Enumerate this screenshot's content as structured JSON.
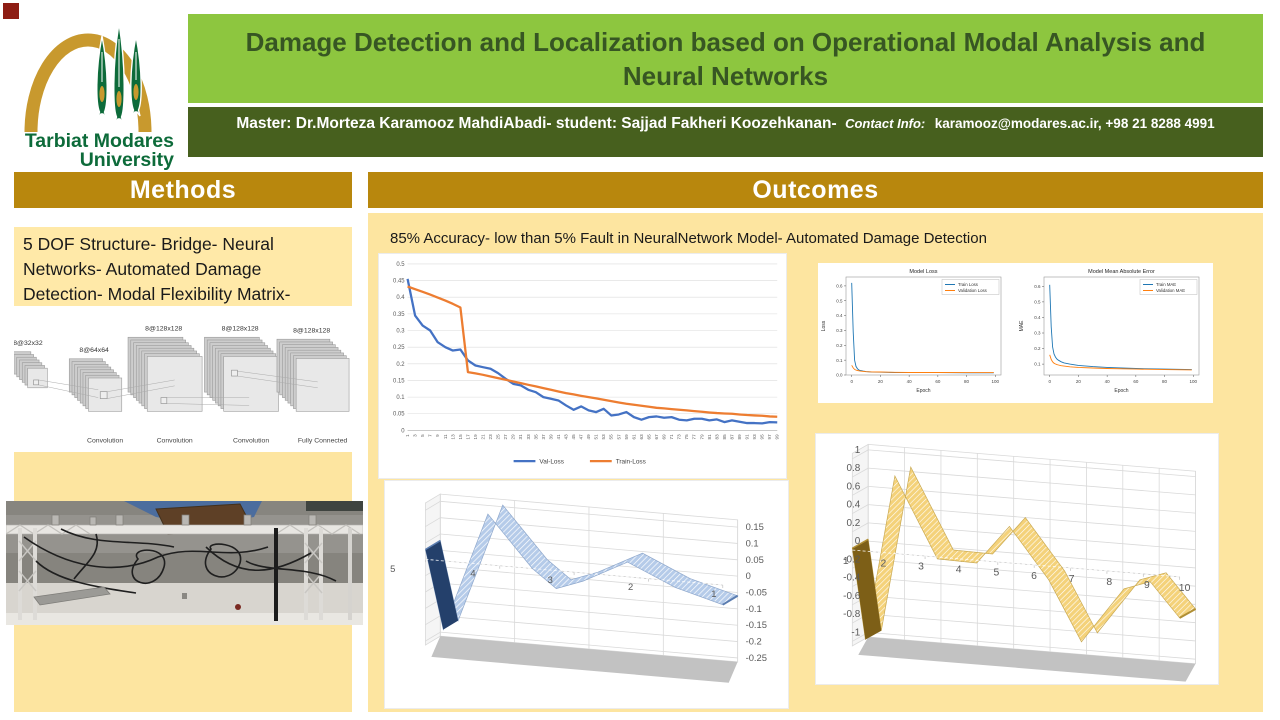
{
  "university": {
    "name_line1": "Tarbiat Modares",
    "name_line2": "University"
  },
  "header": {
    "title": "Damage Detection and Localization based on Operational Modal Analysis and Neural Networks",
    "authors": "Master: Dr.Morteza Karamooz MahdiAbadi- student: Sajjad Fakheri Koozehkanan-",
    "contact_label": "Contact Info:",
    "contact_value": "karamooz@modares.ac.ir, +98 21 8288 4991"
  },
  "sections": {
    "methods": {
      "title": "Methods",
      "summary": "5 DOF Structure- Bridge- Neural Networks- Automated Damage Detection- Modal Flexibility Matrix- Mahalanobis Distance"
    },
    "outcomes": {
      "title": "Outcomes",
      "summary": "85% Accuracy- low than 5% Fault in NeuralNetwork Model- Automated Damage Detection"
    }
  },
  "cnn_diagram": {
    "top_labels": [
      "8@32x32",
      "8@64x64",
      "8@128x128",
      "8@128x128",
      "8@128x128"
    ],
    "bottom_labels": [
      "Convolution",
      "Convolution",
      "Convolution",
      "Fully Connected"
    ]
  },
  "colors": {
    "title_bg": "#8dc63f",
    "title_text": "#375623",
    "authors_bg": "#47601e",
    "section_header_bg": "#b8870d",
    "panel_yellow": "#fde5a0",
    "summary_yellow": "#ffe9a8",
    "excel_blue": "#4472C4",
    "excel_orange": "#ED7D31",
    "mpl_blue": "#1f77b4",
    "mpl_orange": "#ff7f0e",
    "ribbon_blue": "#b5cbe9",
    "ribbon_yellow": "#f4d27a",
    "logo_green": "#0d6b3a",
    "logo_gold": "#c8992e"
  },
  "chart_data": [
    {
      "type": "line",
      "name": "training-history",
      "title": "",
      "x_ticks": [
        1,
        3,
        5,
        7,
        9,
        11,
        13,
        15,
        17,
        19,
        21,
        23,
        25,
        27,
        29,
        31,
        33,
        35,
        37,
        39,
        41,
        43,
        45,
        47,
        49,
        51,
        53,
        55,
        57,
        59,
        61,
        63,
        65,
        67,
        69,
        71,
        73,
        75,
        77,
        79,
        81,
        83,
        85,
        87,
        89,
        91,
        93,
        95,
        97,
        99
      ],
      "y_ticks": [
        0,
        0.05,
        0.1,
        0.15,
        0.2,
        0.25,
        0.3,
        0.35,
        0.4,
        0.45,
        0.5
      ],
      "ylim": [
        0,
        0.5
      ],
      "grid": true,
      "legend_position": "bottom",
      "series": [
        {
          "name": "Val-Loss",
          "color": "#4472C4",
          "values": [
            0.455,
            0.345,
            0.315,
            0.3,
            0.265,
            0.25,
            0.24,
            0.243,
            0.21,
            0.195,
            0.19,
            0.185,
            0.172,
            0.155,
            0.14,
            0.135,
            0.122,
            0.115,
            0.1,
            0.095,
            0.09,
            0.075,
            0.062,
            0.072,
            0.06,
            0.055,
            0.065,
            0.045,
            0.048,
            0.055,
            0.04,
            0.032,
            0.04,
            0.042,
            0.038,
            0.04,
            0.032,
            0.03,
            0.035,
            0.035,
            0.03,
            0.033,
            0.025,
            0.03,
            0.026,
            0.022,
            0.022,
            0.021,
            0.025,
            0.024
          ]
        },
        {
          "name": "Train-Loss",
          "color": "#ED7D31",
          "values": [
            0.432,
            0.424,
            0.416,
            0.408,
            0.399,
            0.39,
            0.38,
            0.369,
            0.175,
            0.171,
            0.167,
            0.162,
            0.157,
            0.152,
            0.147,
            0.142,
            0.137,
            0.132,
            0.127,
            0.122,
            0.117,
            0.112,
            0.108,
            0.104,
            0.1,
            0.096,
            0.092,
            0.088,
            0.084,
            0.08,
            0.077,
            0.074,
            0.071,
            0.068,
            0.066,
            0.064,
            0.062,
            0.06,
            0.058,
            0.056,
            0.054,
            0.052,
            0.051,
            0.05,
            0.048,
            0.046,
            0.045,
            0.044,
            0.042,
            0.041
          ]
        }
      ]
    },
    {
      "type": "line",
      "name": "model-loss",
      "title": "Model Loss",
      "xlabel": "Epoch",
      "ylabel": "Loss",
      "x_ticks": [
        0,
        20,
        40,
        60,
        80,
        100
      ],
      "y_ticks": [
        0.0,
        0.1,
        0.2,
        0.3,
        0.4,
        0.5,
        0.6
      ],
      "tick_decimals": 1,
      "ylim": [
        0,
        0.66
      ],
      "legend_position": "upper right",
      "series": [
        {
          "name": "Train Loss",
          "color": "#1f77b4",
          "x": [
            0,
            1,
            2,
            3,
            4,
            5,
            6,
            8,
            10,
            14,
            20,
            30,
            40,
            60,
            80,
            99
          ],
          "y": [
            0.62,
            0.29,
            0.1,
            0.058,
            0.042,
            0.034,
            0.03,
            0.026,
            0.023,
            0.02,
            0.019,
            0.017,
            0.016,
            0.016,
            0.015,
            0.015
          ]
        },
        {
          "name": "Validation Loss",
          "color": "#ff7f0e",
          "x": [
            0,
            1,
            2,
            3,
            4,
            5,
            6,
            8,
            10,
            14,
            20,
            30,
            40,
            60,
            80,
            99
          ],
          "y": [
            0.065,
            0.048,
            0.038,
            0.033,
            0.03,
            0.028,
            0.026,
            0.024,
            0.022,
            0.021,
            0.02,
            0.018,
            0.017,
            0.017,
            0.016,
            0.016
          ]
        }
      ]
    },
    {
      "type": "line",
      "name": "model-mean-absolute-error",
      "title": "Model Mean Absolute Error",
      "xlabel": "Epoch",
      "ylabel": "MAE",
      "x_ticks": [
        0,
        20,
        40,
        60,
        80,
        100
      ],
      "y_ticks": [
        0.1,
        0.2,
        0.3,
        0.4,
        0.5,
        0.6
      ],
      "tick_decimals": 1,
      "ylim": [
        0.03,
        0.66
      ],
      "legend_position": "upper right",
      "series": [
        {
          "name": "Train MAE",
          "color": "#1f77b4",
          "x": [
            0,
            1,
            2,
            3,
            4,
            5,
            6,
            8,
            10,
            14,
            20,
            30,
            40,
            60,
            80,
            99
          ],
          "y": [
            0.61,
            0.34,
            0.21,
            0.165,
            0.145,
            0.133,
            0.125,
            0.115,
            0.108,
            0.1,
            0.092,
            0.084,
            0.079,
            0.072,
            0.068,
            0.065
          ]
        },
        {
          "name": "Validation MAE",
          "color": "#ff7f0e",
          "x": [
            0,
            1,
            2,
            3,
            4,
            5,
            6,
            8,
            10,
            14,
            20,
            30,
            40,
            60,
            80,
            99
          ],
          "y": [
            0.16,
            0.13,
            0.115,
            0.106,
            0.101,
            0.097,
            0.094,
            0.09,
            0.087,
            0.083,
            0.079,
            0.075,
            0.072,
            0.068,
            0.065,
            0.063
          ]
        }
      ]
    },
    {
      "type": "area",
      "name": "modal-flexibility-difference-blue",
      "projection": "3d",
      "categories": [
        "5",
        "4",
        "3",
        "2",
        "1"
      ],
      "y_ticks": [
        0.15,
        0.1,
        0.05,
        0,
        -0.05,
        -0.1,
        -0.15,
        -0.2,
        -0.25
      ],
      "ylim": [
        -0.25,
        0.15
      ],
      "axis_side": "right",
      "points": [
        [
          0.0,
          0.03
        ],
        [
          0.06,
          -0.21
        ],
        [
          0.21,
          0.155
        ],
        [
          0.36,
          0.0
        ],
        [
          0.44,
          -0.055
        ],
        [
          0.53,
          -0.025
        ],
        [
          0.68,
          0.045
        ],
        [
          0.84,
          -0.02
        ],
        [
          1.0,
          -0.06
        ]
      ]
    },
    {
      "type": "area",
      "name": "damage-index-yellow",
      "projection": "3d",
      "categories": [
        "1",
        "2",
        "3",
        "4",
        "5",
        "6",
        "7",
        "8",
        "9",
        "10"
      ],
      "y_ticks": [
        1,
        0.8,
        0.6,
        0.4,
        0.2,
        0,
        -0.2,
        -0.4,
        -0.6,
        -0.8,
        -1
      ],
      "ylim": [
        -1,
        1
      ],
      "axis_side": "left",
      "points": [
        [
          0.0,
          0.02
        ],
        [
          0.04,
          -0.97
        ],
        [
          0.13,
          0.85
        ],
        [
          0.26,
          -0.02
        ],
        [
          0.38,
          -0.03
        ],
        [
          0.48,
          0.4
        ],
        [
          0.6,
          -0.15
        ],
        [
          0.7,
          -0.8
        ],
        [
          0.83,
          -0.18
        ],
        [
          0.91,
          -0.08
        ],
        [
          1.0,
          -0.45
        ]
      ]
    }
  ]
}
